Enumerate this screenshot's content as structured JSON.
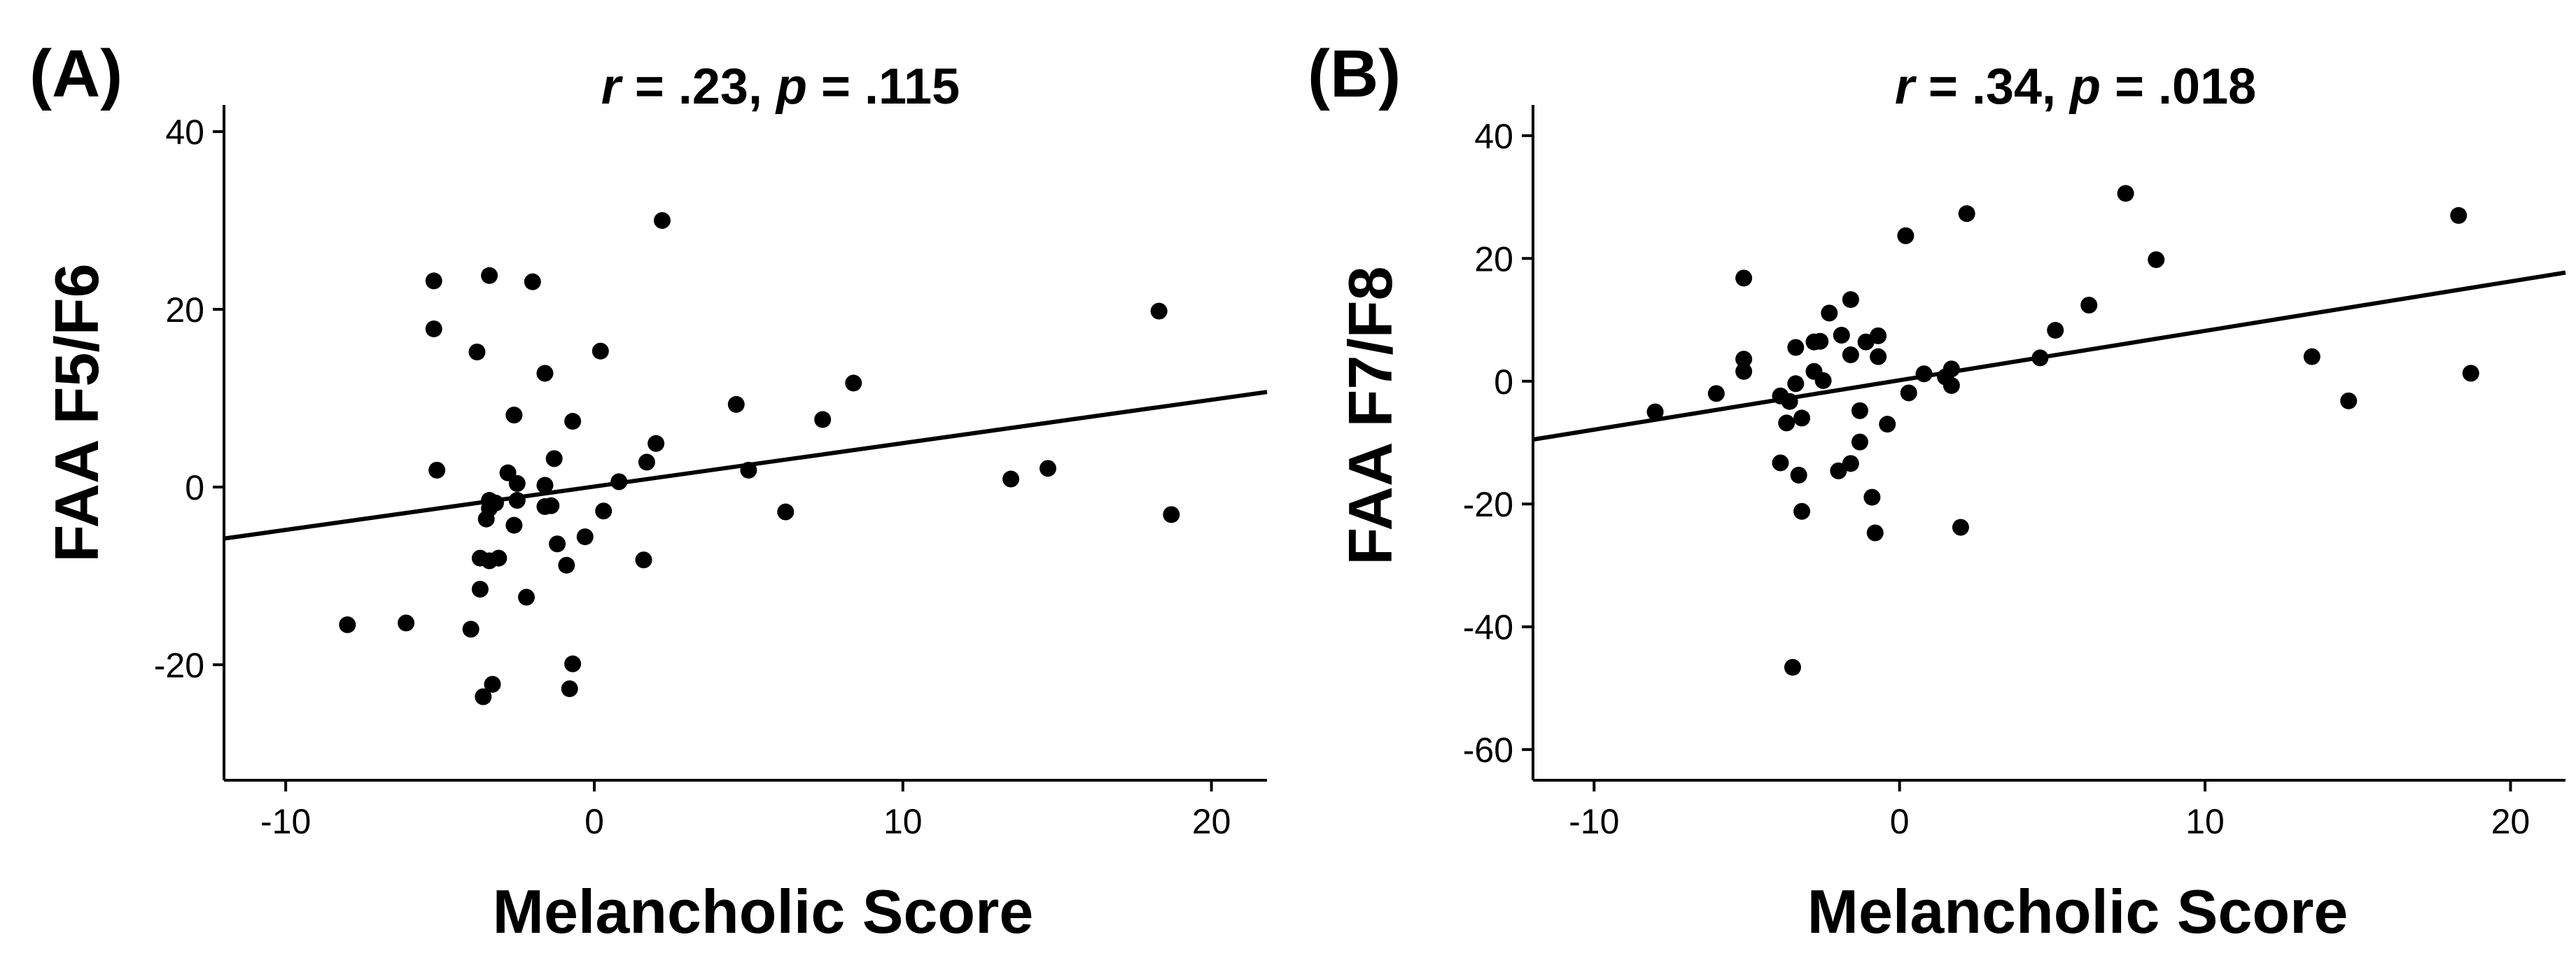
{
  "chart_data": [
    {
      "type": "scatter",
      "panel_label": "(A)",
      "title": {
        "r_symbol": "r",
        "r_value": " = .23, ",
        "p_symbol": "p",
        "p_value": " = .115"
      },
      "xlabel": "Melancholic Score",
      "ylabel": "FAA F5/F6",
      "xlim": [
        -12,
        21.8
      ],
      "ylim": [
        -33,
        43
      ],
      "xticks": [
        -10,
        0,
        10,
        20
      ],
      "yticks": [
        -20,
        0,
        20,
        40
      ],
      "xtick_labels": [
        "-10",
        "0",
        "10",
        "20"
      ],
      "ytick_labels": [
        "-20",
        "0",
        "20",
        "40"
      ],
      "fit_line": {
        "x": [
          -12,
          21.8
        ],
        "y": [
          -5.8,
          10.7
        ]
      },
      "points": [
        [
          -8,
          -15.5
        ],
        [
          -6.1,
          -15.3
        ],
        [
          -5.2,
          23.2
        ],
        [
          -5.2,
          17.8
        ],
        [
          -5.1,
          1.9
        ],
        [
          -4,
          -16
        ],
        [
          -3.8,
          15.2
        ],
        [
          -3.7,
          -11.5
        ],
        [
          -3.7,
          -8
        ],
        [
          -3.4,
          23.8
        ],
        [
          -3.4,
          -1.5
        ],
        [
          -3.4,
          -8.3
        ],
        [
          -3.5,
          -3.6
        ],
        [
          -3.4,
          -2.4
        ],
        [
          -3.2,
          -1.8
        ],
        [
          -3.1,
          -8
        ],
        [
          -3.3,
          -22.2
        ],
        [
          -3.6,
          -23.6
        ],
        [
          -2.8,
          1.6
        ],
        [
          -2.6,
          8.1
        ],
        [
          -2.5,
          0.4
        ],
        [
          -2.6,
          -4.3
        ],
        [
          -2.5,
          -1.5
        ],
        [
          -2.2,
          -12.4
        ],
        [
          -2.0,
          23.1
        ],
        [
          -1.6,
          12.8
        ],
        [
          -1.6,
          -2.2
        ],
        [
          -1.4,
          -2.1
        ],
        [
          -1.3,
          3.2
        ],
        [
          -1.2,
          -6.4
        ],
        [
          -0.9,
          -8.8
        ],
        [
          -0.7,
          7.4
        ],
        [
          -0.7,
          -19.9
        ],
        [
          -0.8,
          -22.7
        ],
        [
          -0.3,
          -5.6
        ],
        [
          0.2,
          15.3
        ],
        [
          0.3,
          -2.7
        ],
        [
          0.8,
          0.6
        ],
        [
          1.6,
          -8.2
        ],
        [
          2.0,
          4.9
        ],
        [
          2.2,
          30
        ],
        [
          4.6,
          9.3
        ],
        [
          5.0,
          1.9
        ],
        [
          6.2,
          -2.8
        ],
        [
          7.4,
          7.6
        ],
        [
          8.4,
          11.7
        ],
        [
          13.5,
          0.9
        ],
        [
          14.7,
          2.1
        ],
        [
          18.3,
          19.8
        ],
        [
          18.7,
          -3.1
        ],
        [
          1.7,
          2.8
        ],
        [
          -1.6,
          0.2
        ]
      ]
    },
    {
      "type": "scatter",
      "panel_label": "(B)",
      "title": {
        "r_symbol": "r",
        "r_value": " = .34, ",
        "p_symbol": "p",
        "p_value": " = .018"
      },
      "xlabel": "Melancholic Score",
      "ylabel": "FAA F7/F8",
      "xlim": [
        -12,
        21.8
      ],
      "ylim": [
        -65,
        45
      ],
      "xticks": [
        -10,
        0,
        10,
        20
      ],
      "yticks": [
        -60,
        -40,
        -20,
        0,
        20,
        40
      ],
      "xtick_labels": [
        "-10",
        "0",
        "10",
        "20"
      ],
      "ytick_labels": [
        "-60",
        "-40",
        "-20",
        "0",
        "20",
        "40"
      ],
      "fit_line": {
        "x": [
          -12,
          21.8
        ],
        "y": [
          -9.5,
          17.7
        ]
      },
      "points": [
        [
          -8,
          -5
        ],
        [
          -6,
          -2
        ],
        [
          -5.1,
          16.8
        ],
        [
          -5.1,
          3.6
        ],
        [
          -5.1,
          1.6
        ],
        [
          -3.9,
          -2.4
        ],
        [
          -3.9,
          -13.3
        ],
        [
          -3.7,
          -6.8
        ],
        [
          -3.6,
          -3.3
        ],
        [
          -3.4,
          5.5
        ],
        [
          -3.4,
          -0.4
        ],
        [
          -3.3,
          -15.3
        ],
        [
          -3.2,
          -21.2
        ],
        [
          -3.2,
          -6
        ],
        [
          -3.5,
          -46.6
        ],
        [
          -2.8,
          6.4
        ],
        [
          -2.8,
          1.6
        ],
        [
          -2.6,
          6.5
        ],
        [
          -2.5,
          0.1
        ],
        [
          -2.3,
          11.1
        ],
        [
          -2.0,
          -14.6
        ],
        [
          -1.9,
          7.5
        ],
        [
          -1.6,
          13.3
        ],
        [
          -1.6,
          4.3
        ],
        [
          -1.6,
          -13.4
        ],
        [
          -1.3,
          -4.8
        ],
        [
          -1.3,
          -9.9
        ],
        [
          -1.1,
          6.4
        ],
        [
          -0.9,
          -18.9
        ],
        [
          -0.8,
          -24.7
        ],
        [
          -0.7,
          7.4
        ],
        [
          -0.7,
          4.0
        ],
        [
          -0.4,
          -7.0
        ],
        [
          0.2,
          23.7
        ],
        [
          0.3,
          -1.9
        ],
        [
          0.8,
          1.2
        ],
        [
          1.5,
          0.7
        ],
        [
          1.7,
          2.0
        ],
        [
          1.7,
          -0.7
        ],
        [
          2.0,
          -23.8
        ],
        [
          2.2,
          27.3
        ],
        [
          4.6,
          3.8
        ],
        [
          5.1,
          8.3
        ],
        [
          6.2,
          12.4
        ],
        [
          7.4,
          30.6
        ],
        [
          8.4,
          19.8
        ],
        [
          13.5,
          4.0
        ],
        [
          14.7,
          -3.2
        ],
        [
          18.3,
          27.0
        ],
        [
          18.7,
          1.3
        ]
      ]
    }
  ]
}
